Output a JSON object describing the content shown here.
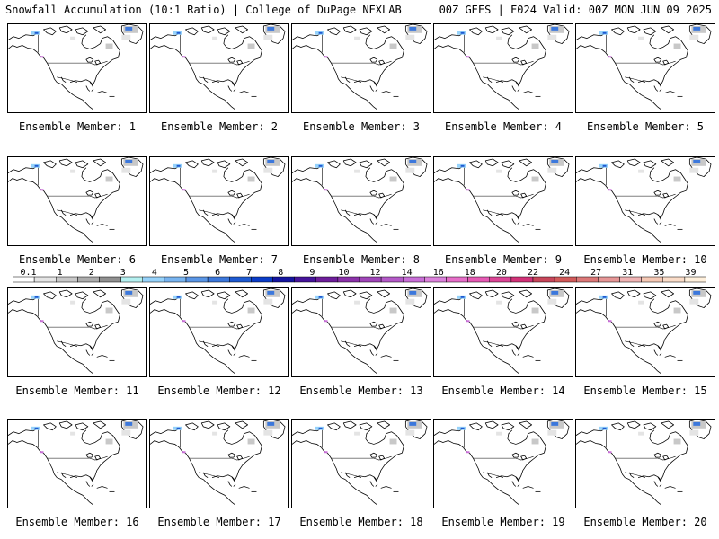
{
  "header": {
    "left_title": "Snowfall Accumulation (10:1 Ratio) | College of DuPage NEXLAB",
    "right_title": "00Z GEFS | F024 Valid: 00Z MON JUN 09 2025"
  },
  "members": [
    {
      "label": "Ensemble Member: 1"
    },
    {
      "label": "Ensemble Member: 2"
    },
    {
      "label": "Ensemble Member: 3"
    },
    {
      "label": "Ensemble Member: 4"
    },
    {
      "label": "Ensemble Member: 5"
    },
    {
      "label": "Ensemble Member: 6"
    },
    {
      "label": "Ensemble Member: 7"
    },
    {
      "label": "Ensemble Member: 8"
    },
    {
      "label": "Ensemble Member: 9"
    },
    {
      "label": "Ensemble Member: 10"
    },
    {
      "label": "Ensemble Member: 11"
    },
    {
      "label": "Ensemble Member: 12"
    },
    {
      "label": "Ensemble Member: 13"
    },
    {
      "label": "Ensemble Member: 14"
    },
    {
      "label": "Ensemble Member: 15"
    },
    {
      "label": "Ensemble Member: 16"
    },
    {
      "label": "Ensemble Member: 17"
    },
    {
      "label": "Ensemble Member: 18"
    },
    {
      "label": "Ensemble Member: 19"
    },
    {
      "label": "Ensemble Member: 20"
    }
  ],
  "legend": {
    "labels": [
      "0.1",
      "1",
      "2",
      "3",
      "4",
      "5",
      "6",
      "7",
      "8",
      "9",
      "10",
      "12",
      "14",
      "16",
      "18",
      "20",
      "22",
      "24",
      "27",
      "31",
      "35",
      "39"
    ],
    "colors": [
      "#ffffff",
      "#e4e4e4",
      "#c8c8c8",
      "#acacac",
      "#909090",
      "#b4f0f0",
      "#96d2fa",
      "#78b4f0",
      "#5a96e6",
      "#3c78dc",
      "#1e5ad2",
      "#0a3cc8",
      "#1414a0",
      "#46149b",
      "#6e1e9b",
      "#8c32aa",
      "#a046b9",
      "#b45ac8",
      "#c86ed7",
      "#dc82dc",
      "#e66ec8",
      "#e65ab4",
      "#dc4696",
      "#d23278",
      "#c8465a",
      "#d25a5a",
      "#dc7878",
      "#e69696",
      "#f0b4b4",
      "#f5c8b4",
      "#fadcc8",
      "#fff0dc"
    ]
  }
}
